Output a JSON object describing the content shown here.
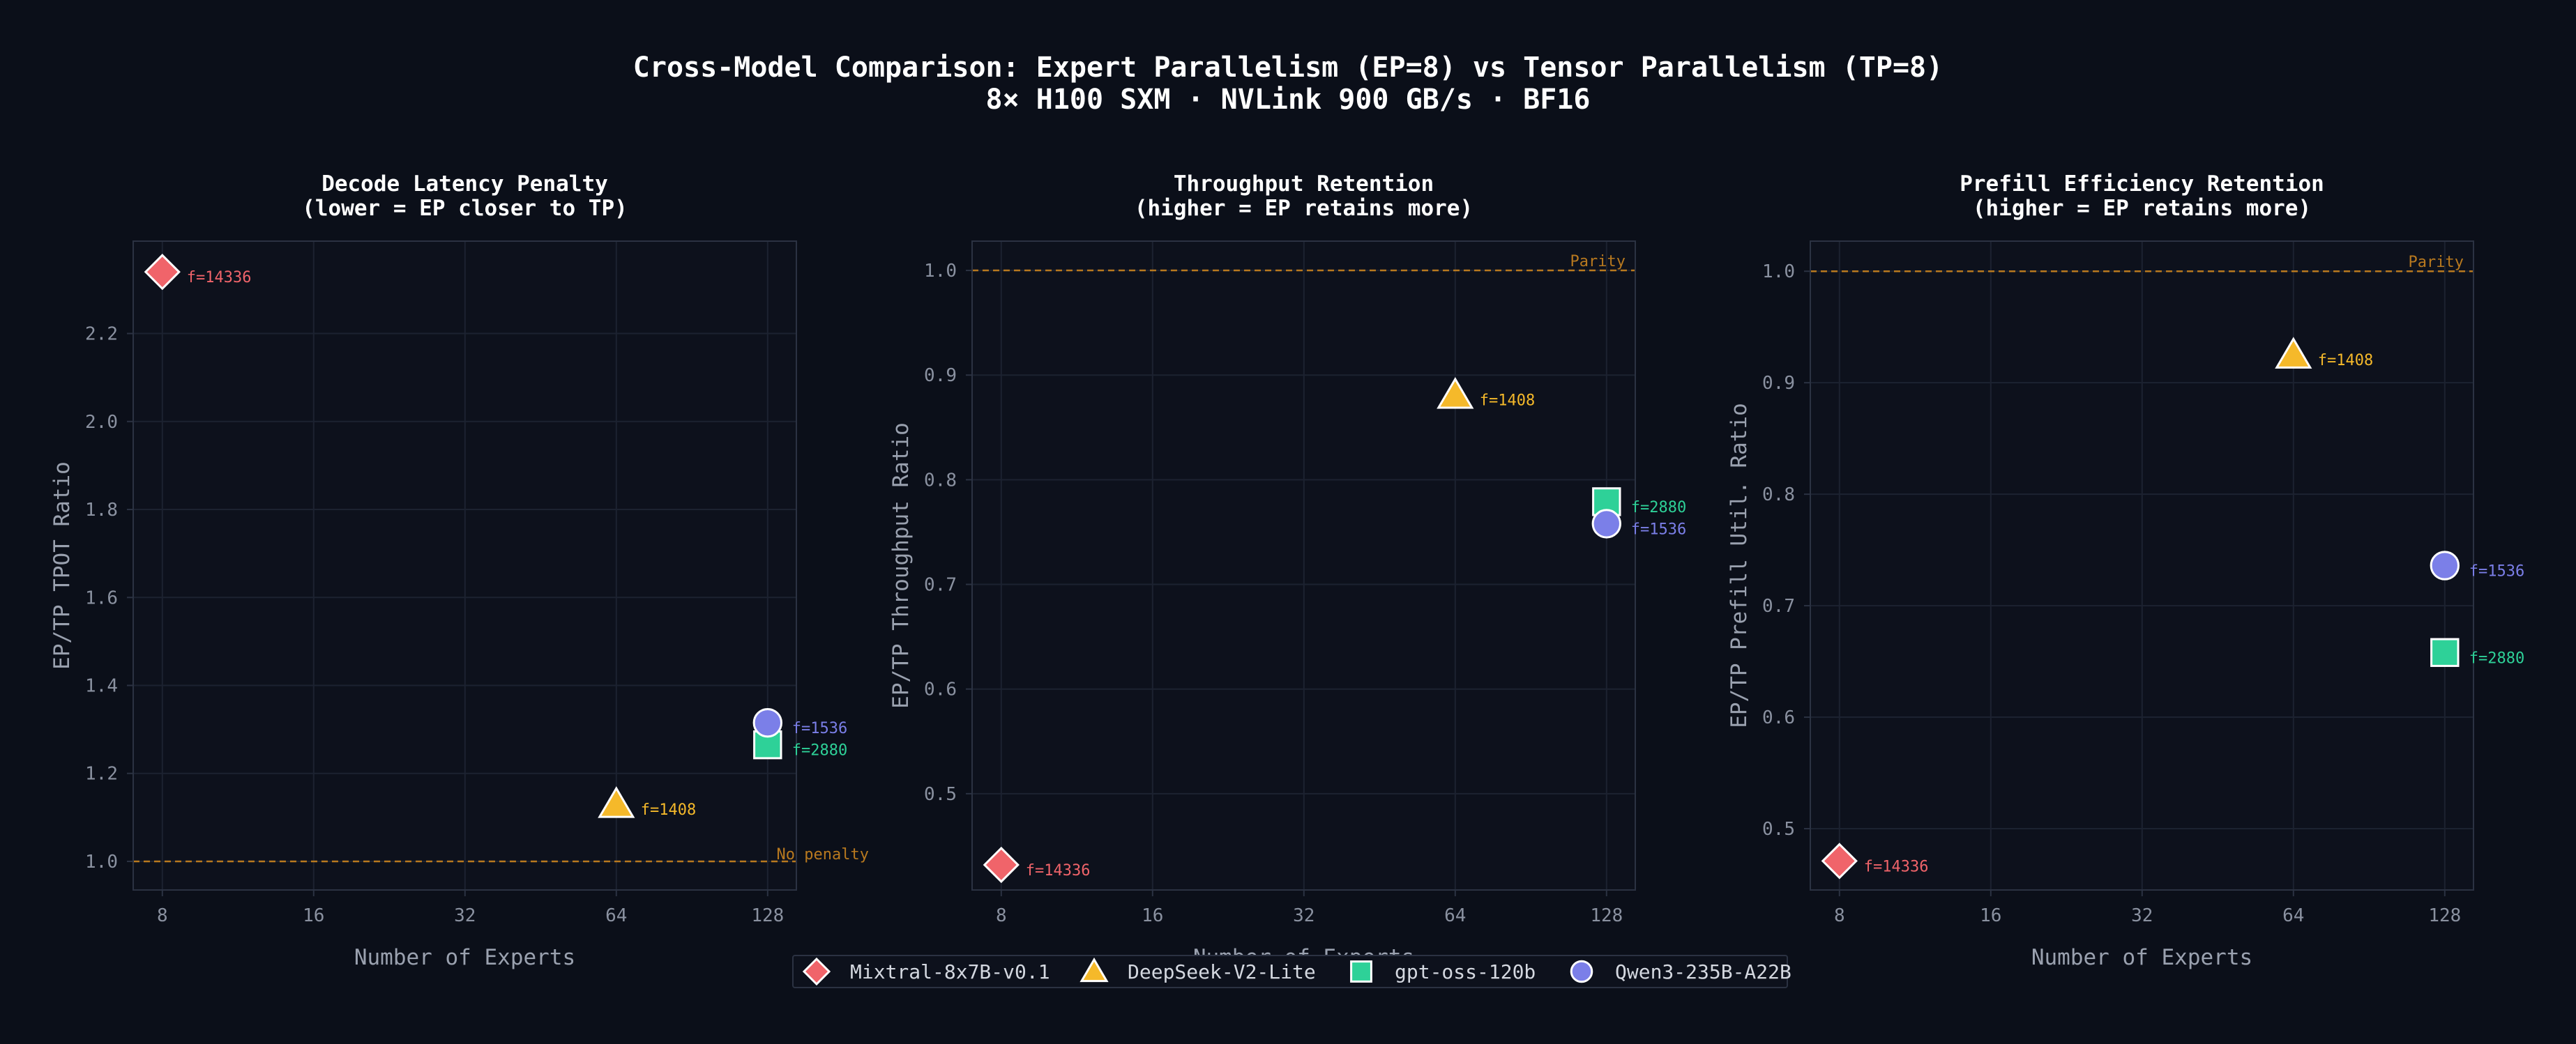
{
  "figure": {
    "title_line1": "Cross-Model Comparison: Expert Parallelism (EP=8) vs Tensor Parallelism (TP=8)",
    "title_line2": "8× H100 SXM · NVLink 900 GB/s · BF16"
  },
  "colors": {
    "background": "#0b0f19",
    "axes_bg": "#0d111c",
    "grid": "#1c2230",
    "spine": "#2b3242",
    "tick_text": "#8a91a0",
    "label_text": "#9aa1af",
    "title_text": "#ffffff",
    "reference_line": "#b8791f"
  },
  "legend": [
    {
      "name": "Mixtral-8x7B-v0.1",
      "marker": "diamond",
      "color": "#f0646a"
    },
    {
      "name": "DeepSeek-V2-Lite",
      "marker": "triangle",
      "color": "#f5b92a"
    },
    {
      "name": "gpt-oss-120b",
      "marker": "square",
      "color": "#2ed198"
    },
    {
      "name": "Qwen3-235B-A22B",
      "marker": "circle",
      "color": "#7b7fe8"
    }
  ],
  "chart_data": [
    {
      "type": "scatter",
      "title_line1": "Decode Latency Penalty",
      "title_line2": "(lower = EP closer to TP)",
      "xlabel": "Number of Experts",
      "ylabel": "EP/TP TPOT Ratio",
      "x_scale": "log2",
      "xlim": [
        7,
        146
      ],
      "xticks": [
        8,
        16,
        32,
        64,
        128
      ],
      "ylim": [
        0.935,
        2.41
      ],
      "yticks": [
        1.0,
        1.2,
        1.4,
        1.6,
        1.8,
        2.0,
        2.2
      ],
      "grid": true,
      "reference": {
        "y": 1.0,
        "label": "No penalty",
        "label_position": "bottom-right"
      },
      "points": [
        {
          "series": "Mixtral-8x7B-v0.1",
          "x": 8,
          "y": 2.34,
          "label": "f=14336"
        },
        {
          "series": "DeepSeek-V2-Lite",
          "x": 64,
          "y": 1.13,
          "label": "f=1408"
        },
        {
          "series": "gpt-oss-120b",
          "x": 128,
          "y": 1.265,
          "label": "f=2880"
        },
        {
          "series": "Qwen3-235B-A22B",
          "x": 128,
          "y": 1.315,
          "label": "f=1536"
        }
      ]
    },
    {
      "type": "scatter",
      "title_line1": "Throughput Retention",
      "title_line2": "(higher = EP retains more)",
      "xlabel": "Number of Experts",
      "ylabel": "EP/TP Throughput Ratio",
      "x_scale": "log2",
      "xlim": [
        7,
        146
      ],
      "xticks": [
        8,
        16,
        32,
        64,
        128
      ],
      "ylim": [
        0.408,
        1.028
      ],
      "yticks": [
        0.5,
        0.6,
        0.7,
        0.8,
        0.9,
        1.0
      ],
      "grid": true,
      "reference": {
        "y": 1.0,
        "label": "Parity",
        "label_position": "top-right"
      },
      "points": [
        {
          "series": "Mixtral-8x7B-v0.1",
          "x": 8,
          "y": 0.432,
          "label": "f=14336"
        },
        {
          "series": "DeepSeek-V2-Lite",
          "x": 64,
          "y": 0.881,
          "label": "f=1408"
        },
        {
          "series": "gpt-oss-120b",
          "x": 128,
          "y": 0.779,
          "label": "f=2880"
        },
        {
          "series": "Qwen3-235B-A22B",
          "x": 128,
          "y": 0.758,
          "label": "f=1536"
        }
      ]
    },
    {
      "type": "scatter",
      "title_line1": "Prefill Efficiency Retention",
      "title_line2": "(higher = EP retains more)",
      "xlabel": "Number of Experts",
      "ylabel": "EP/TP Prefill Util. Ratio",
      "x_scale": "log2",
      "xlim": [
        7,
        146
      ],
      "xticks": [
        8,
        16,
        32,
        64,
        128
      ],
      "ylim": [
        0.445,
        1.027
      ],
      "yticks": [
        0.5,
        0.6,
        0.7,
        0.8,
        0.9,
        1.0
      ],
      "grid": true,
      "reference": {
        "y": 1.0,
        "label": "Parity",
        "label_position": "top-right"
      },
      "points": [
        {
          "series": "Mixtral-8x7B-v0.1",
          "x": 8,
          "y": 0.471,
          "label": "f=14336"
        },
        {
          "series": "DeepSeek-V2-Lite",
          "x": 64,
          "y": 0.925,
          "label": "f=1408"
        },
        {
          "series": "gpt-oss-120b",
          "x": 128,
          "y": 0.658,
          "label": "f=2880"
        },
        {
          "series": "Qwen3-235B-A22B",
          "x": 128,
          "y": 0.736,
          "label": "f=1536"
        }
      ]
    }
  ]
}
